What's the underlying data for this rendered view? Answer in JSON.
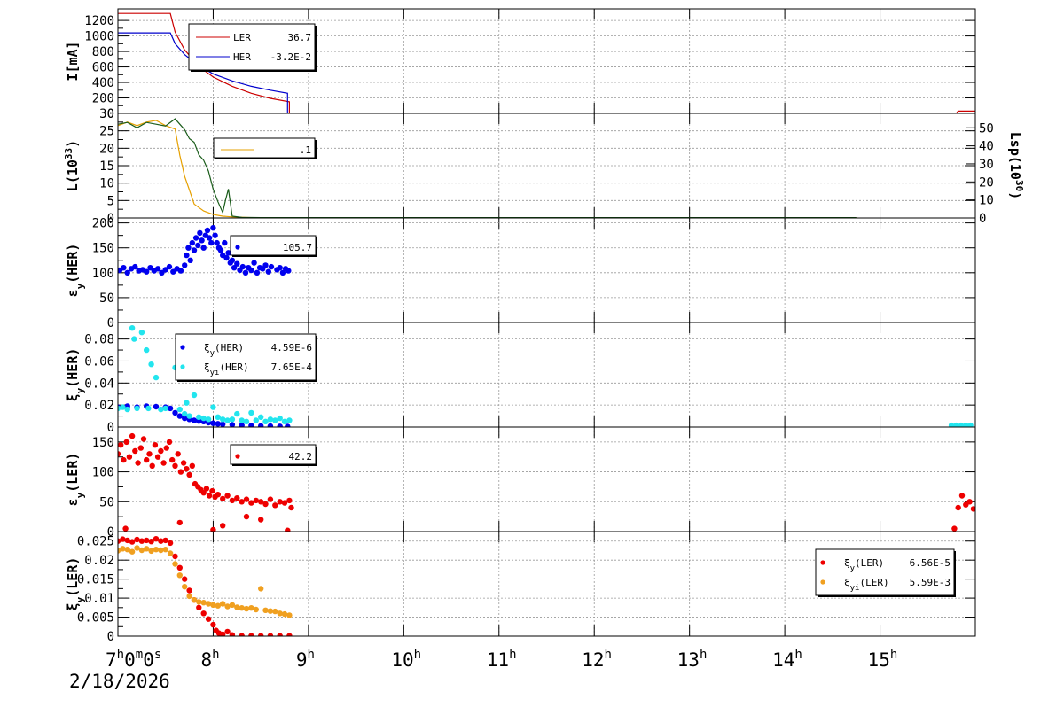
{
  "chart_data": [
    {
      "type": "line",
      "id": "current",
      "ylabel_main": "I[mA]",
      "ylim": [
        0,
        1350
      ],
      "yticks": [
        0,
        200,
        400,
        600,
        800,
        1000,
        1200
      ],
      "grid": true,
      "legend_position": "top-left",
      "series": [
        {
          "name": "LER",
          "value_label": "36.7",
          "color": "#cc0000",
          "x": [
            7.0,
            7.55,
            7.6,
            7.7,
            7.8,
            7.9,
            8.0,
            8.2,
            8.4,
            8.6,
            8.8,
            8.8,
            9.0,
            15.8,
            15.82,
            16.0
          ],
          "y": [
            1290,
            1290,
            1050,
            820,
            680,
            560,
            470,
            350,
            260,
            195,
            150,
            0,
            0,
            0,
            30,
            30
          ]
        },
        {
          "name": "HER",
          "value_label": "-3.2E-2",
          "color": "#0000cc",
          "x": [
            7.0,
            7.55,
            7.6,
            7.7,
            7.8,
            7.9,
            8.0,
            8.2,
            8.4,
            8.6,
            8.78,
            8.78,
            16.0
          ],
          "y": [
            1040,
            1040,
            900,
            760,
            660,
            580,
            510,
            420,
            350,
            300,
            260,
            0,
            0
          ]
        }
      ]
    },
    {
      "type": "line",
      "id": "luminosity",
      "ylabel_main": "L(10",
      "ylabel_sup": "33",
      "ylabel_tail": ")",
      "ylabel_right": "Lsp(10",
      "ylabel_right_sup": "30",
      "ylabel_right_tail": ")",
      "ylim": [
        0,
        30
      ],
      "yticks": [
        0,
        5,
        10,
        15,
        20,
        25,
        30
      ],
      "ylim_right": [
        0,
        58
      ],
      "yticks_right": [
        0,
        10,
        20,
        30,
        40,
        50
      ],
      "grid": true,
      "legend_position": "top-left",
      "series": [
        {
          "name": "",
          "value_label": ".1",
          "color": "#e6a000",
          "axis": "left",
          "x": [
            7.0,
            7.1,
            7.2,
            7.3,
            7.4,
            7.5,
            7.6,
            7.65,
            7.7,
            7.75,
            7.8,
            7.85,
            7.9,
            8.0,
            8.1,
            8.2,
            8.4,
            10.0,
            14.75
          ],
          "y": [
            26.5,
            27.5,
            26.5,
            27.5,
            28,
            26.5,
            25.5,
            18,
            12,
            8,
            4,
            3,
            2,
            1,
            0.5,
            0.3,
            0.1,
            0.1,
            0.1
          ]
        },
        {
          "name": "",
          "value_label": "",
          "color": "#1a5c1a",
          "axis": "right",
          "x": [
            7.0,
            7.1,
            7.2,
            7.3,
            7.4,
            7.5,
            7.6,
            7.65,
            7.7,
            7.75,
            7.8,
            7.85,
            7.9,
            7.95,
            8.0,
            8.05,
            8.1,
            8.13,
            8.16,
            8.2,
            8.3,
            8.5,
            10.0,
            14.75
          ],
          "y": [
            52,
            53,
            50,
            53,
            52,
            51,
            55,
            52,
            49,
            44,
            42,
            35,
            32,
            26,
            16,
            9,
            3,
            10,
            16,
            1,
            0.3,
            0.2,
            0.2,
            0.2
          ]
        }
      ]
    },
    {
      "type": "scatter",
      "id": "emit_her",
      "ylabel_main": "ε",
      "ylabel_sub": "y",
      "ylabel_tail": "(HER)",
      "ylim": [
        0,
        210
      ],
      "yticks": [
        0,
        50,
        100,
        150,
        200
      ],
      "grid": true,
      "legend_position": "top-center",
      "series": [
        {
          "name": "",
          "value_label": "105.7",
          "color": "#0000ee",
          "x": [
            7.02,
            7.06,
            7.1,
            7.14,
            7.18,
            7.22,
            7.26,
            7.3,
            7.34,
            7.38,
            7.42,
            7.46,
            7.5,
            7.54,
            7.58,
            7.62,
            7.66,
            7.7,
            7.72,
            7.74,
            7.76,
            7.78,
            7.8,
            7.82,
            7.84,
            7.86,
            7.88,
            7.9,
            7.92,
            7.94,
            7.96,
            7.98,
            8.0,
            8.02,
            8.04,
            8.06,
            8.08,
            8.1,
            8.12,
            8.14,
            8.16,
            8.18,
            8.2,
            8.22,
            8.25,
            8.28,
            8.31,
            8.34,
            8.37,
            8.4,
            8.43,
            8.46,
            8.49,
            8.52,
            8.55,
            8.58,
            8.61,
            8.64,
            8.67,
            8.7,
            8.73,
            8.76,
            8.79
          ],
          "y": [
            105,
            110,
            100,
            108,
            112,
            104,
            106,
            102,
            110,
            104,
            108,
            100,
            106,
            112,
            102,
            108,
            104,
            115,
            135,
            150,
            125,
            160,
            145,
            170,
            155,
            180,
            165,
            150,
            175,
            185,
            170,
            160,
            190,
            175,
            160,
            150,
            145,
            135,
            160,
            130,
            140,
            120,
            125,
            110,
            118,
            105,
            112,
            100,
            110,
            105,
            120,
            100,
            110,
            108,
            115,
            102,
            112,
            140,
            106,
            110,
            100,
            108,
            104
          ]
        }
      ]
    },
    {
      "type": "scatter",
      "id": "xi_her",
      "ylabel_main": "ξ",
      "ylabel_sub": "y",
      "ylabel_tail": "(HER)",
      "ylim": [
        0,
        0.095
      ],
      "yticks": [
        0,
        0.02,
        0.04,
        0.06,
        0.08
      ],
      "ytick_labels": [
        "0",
        "0.02",
        "0.04",
        "0.06",
        "0.08"
      ],
      "grid": true,
      "legend_position": "top-left",
      "series": [
        {
          "name": "ξy(HER)",
          "label_greek": "ξ",
          "label_sub": "y",
          "label_tail": "(HER)",
          "value_label": "4.59E-6",
          "color": "#0000ee",
          "x": [
            7.0,
            7.1,
            7.2,
            7.3,
            7.4,
            7.5,
            7.55,
            7.6,
            7.65,
            7.7,
            7.75,
            7.8,
            7.85,
            7.9,
            7.95,
            8.0,
            8.05,
            8.1,
            8.2,
            8.3,
            8.4,
            8.5,
            8.6,
            8.7,
            8.78
          ],
          "y": [
            0.018,
            0.019,
            0.018,
            0.019,
            0.0185,
            0.018,
            0.017,
            0.013,
            0.01,
            0.008,
            0.007,
            0.006,
            0.0055,
            0.005,
            0.004,
            0.0035,
            0.003,
            0.0025,
            0.002,
            0.0015,
            0.0012,
            0.001,
            0.0008,
            0.0006,
            0.0005
          ]
        },
        {
          "name": "ξyi(HER)",
          "label_greek": "ξ",
          "label_sub": "yi",
          "label_tail": "(HER)",
          "value_label": "7.65E-4",
          "color": "#22e5ee",
          "x": [
            7.0,
            7.05,
            7.1,
            7.15,
            7.17,
            7.2,
            7.25,
            7.3,
            7.32,
            7.35,
            7.4,
            7.45,
            7.5,
            7.6,
            7.65,
            7.7,
            7.72,
            7.75,
            7.8,
            7.85,
            7.9,
            7.95,
            8.0,
            8.05,
            8.1,
            8.15,
            8.2,
            8.25,
            8.3,
            8.35,
            8.4,
            8.45,
            8.5,
            8.55,
            8.6,
            8.65,
            8.7,
            8.75,
            8.8,
            15.75,
            15.8,
            15.85,
            15.9,
            15.95
          ],
          "y": [
            0.017,
            0.018,
            0.016,
            0.09,
            0.08,
            0.017,
            0.086,
            0.07,
            0.017,
            0.057,
            0.045,
            0.016,
            0.017,
            0.054,
            0.016,
            0.012,
            0.022,
            0.01,
            0.029,
            0.009,
            0.008,
            0.007,
            0.018,
            0.009,
            0.007,
            0.006,
            0.007,
            0.012,
            0.006,
            0.005,
            0.013,
            0.006,
            0.009,
            0.005,
            0.007,
            0.006,
            0.008,
            0.005,
            0.006,
            0.0015,
            0.0015,
            0.0015,
            0.0015,
            0.0015
          ]
        }
      ]
    },
    {
      "type": "scatter",
      "id": "emit_ler",
      "ylabel_main": "ε",
      "ylabel_sub": "y",
      "ylabel_tail": "(LER)",
      "ylim": [
        0,
        175
      ],
      "yticks": [
        0,
        50,
        100,
        150
      ],
      "grid": true,
      "legend_position": "top-center",
      "series": [
        {
          "name": "",
          "value_label": "42.2",
          "color": "#ee0000",
          "x": [
            7.0,
            7.03,
            7.06,
            7.09,
            7.12,
            7.15,
            7.18,
            7.21,
            7.24,
            7.27,
            7.3,
            7.33,
            7.36,
            7.39,
            7.42,
            7.45,
            7.48,
            7.51,
            7.54,
            7.57,
            7.6,
            7.63,
            7.66,
            7.69,
            7.72,
            7.75,
            7.78,
            7.81,
            7.84,
            7.87,
            7.9,
            7.93,
            7.96,
            7.99,
            8.02,
            8.05,
            8.1,
            8.15,
            8.2,
            8.25,
            8.3,
            8.35,
            8.4,
            8.45,
            8.5,
            8.55,
            8.6,
            8.65,
            8.7,
            8.75,
            8.8,
            8.82,
            7.08,
            7.65,
            8.0,
            8.1,
            8.35,
            8.5,
            8.78,
            15.78,
            15.82,
            15.86,
            15.9,
            15.94,
            15.98
          ],
          "y": [
            130,
            145,
            120,
            150,
            125,
            160,
            135,
            115,
            140,
            155,
            120,
            130,
            110,
            145,
            125,
            135,
            115,
            140,
            150,
            120,
            110,
            130,
            100,
            115,
            105,
            95,
            110,
            80,
            75,
            70,
            65,
            72,
            60,
            68,
            58,
            62,
            55,
            60,
            52,
            56,
            50,
            54,
            48,
            52,
            50,
            46,
            54,
            44,
            50,
            48,
            52,
            40,
            5,
            15,
            3,
            10,
            25,
            20,
            2,
            5,
            40,
            60,
            45,
            50,
            38
          ]
        }
      ]
    },
    {
      "type": "scatter",
      "id": "xi_ler",
      "ylabel_main": "ξ",
      "ylabel_sub": "y",
      "ylabel_tail": "(LER)",
      "ylim": [
        0,
        0.0275
      ],
      "yticks": [
        0,
        0.005,
        0.01,
        0.015,
        0.02,
        0.025
      ],
      "ytick_labels": [
        "0",
        "0.005",
        "0.01",
        "0.015",
        "0.02",
        "0.025"
      ],
      "grid": true,
      "legend_position": "top-right",
      "series": [
        {
          "name": "ξy(LER)",
          "label_greek": "ξ",
          "label_sub": "y",
          "label_tail": "(LER)",
          "value_label": "6.56E-5",
          "color": "#ee0000",
          "x": [
            7.0,
            7.05,
            7.1,
            7.15,
            7.2,
            7.25,
            7.3,
            7.35,
            7.4,
            7.45,
            7.5,
            7.55,
            7.6,
            7.65,
            7.7,
            7.75,
            7.8,
            7.85,
            7.9,
            7.95,
            8.0,
            8.03,
            8.06,
            8.1,
            8.15,
            8.2,
            8.3,
            8.4,
            8.5,
            8.6,
            8.7,
            8.8
          ],
          "y": [
            0.025,
            0.0255,
            0.0252,
            0.0248,
            0.0254,
            0.025,
            0.0252,
            0.0249,
            0.0256,
            0.025,
            0.0252,
            0.0245,
            0.021,
            0.018,
            0.015,
            0.012,
            0.0095,
            0.0075,
            0.006,
            0.0045,
            0.003,
            0.0015,
            0.0008,
            0.0005,
            0.0012,
            0.0003,
            0.0001,
            0.0001,
            0.0001,
            0.0001,
            0.0001,
            0.0001
          ]
        },
        {
          "name": "ξyi(LER)",
          "label_greek": "ξ",
          "label_sub": "yi",
          "label_tail": "(LER)",
          "value_label": "5.59E-3",
          "color": "#f0a020",
          "x": [
            7.0,
            7.05,
            7.1,
            7.15,
            7.2,
            7.25,
            7.3,
            7.35,
            7.4,
            7.45,
            7.5,
            7.55,
            7.6,
            7.65,
            7.7,
            7.75,
            7.8,
            7.85,
            7.9,
            7.95,
            8.0,
            8.05,
            8.1,
            8.15,
            8.2,
            8.25,
            8.3,
            8.35,
            8.4,
            8.45,
            8.5,
            8.55,
            8.6,
            8.65,
            8.7,
            8.75,
            8.8
          ],
          "y": [
            0.0225,
            0.023,
            0.0228,
            0.0222,
            0.0232,
            0.0226,
            0.023,
            0.0224,
            0.0228,
            0.0226,
            0.0228,
            0.0218,
            0.019,
            0.016,
            0.013,
            0.0105,
            0.0095,
            0.009,
            0.0088,
            0.0085,
            0.0082,
            0.008,
            0.0085,
            0.0078,
            0.0082,
            0.0076,
            0.0074,
            0.0072,
            0.0074,
            0.007,
            0.0125,
            0.0068,
            0.0066,
            0.0065,
            0.006,
            0.0058,
            0.0055
          ]
        }
      ]
    }
  ],
  "x_axis": {
    "range": [
      7,
      16
    ],
    "ticks": [
      {
        "hour": "7",
        "label_parts": [
          "7",
          "h",
          "0",
          "m",
          "0",
          "s"
        ]
      },
      {
        "hour": "8",
        "label_parts": [
          "8",
          "h"
        ]
      },
      {
        "hour": "9",
        "label_parts": [
          "9",
          "h"
        ]
      },
      {
        "hour": "10",
        "label_parts": [
          "10",
          "h"
        ]
      },
      {
        "hour": "11",
        "label_parts": [
          "11",
          "h"
        ]
      },
      {
        "hour": "12",
        "label_parts": [
          "12",
          "h"
        ]
      },
      {
        "hour": "13",
        "label_parts": [
          "13",
          "h"
        ]
      },
      {
        "hour": "14",
        "label_parts": [
          "14",
          "h"
        ]
      },
      {
        "hour": "15",
        "label_parts": [
          "15",
          "h"
        ]
      }
    ],
    "date": "2/18/2026"
  }
}
